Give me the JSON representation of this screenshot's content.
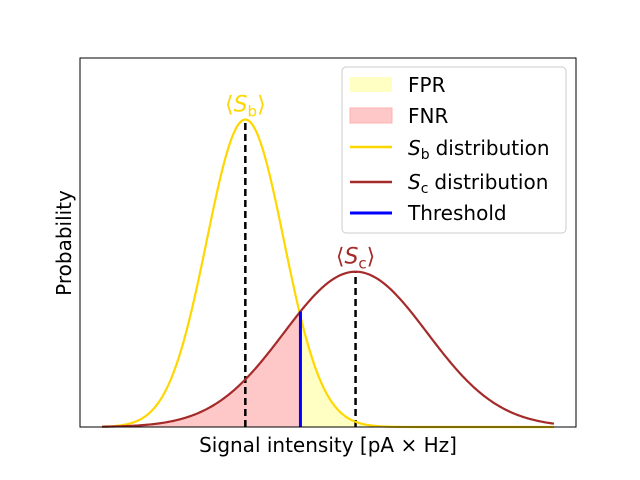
{
  "chart_data": {
    "type": "line",
    "xlabel": "Signal intensity [pA × Hz]",
    "ylabel": "Probability",
    "xlim": [
      -0.3,
      4.2
    ],
    "ylim": [
      0,
      1.2
    ],
    "x_ticks_visible": false,
    "y_ticks_visible": false,
    "grid": false,
    "legend_position": "top-right",
    "threshold": 1.7,
    "series": [
      {
        "name": "S_b distribution",
        "legend_label": "distribution",
        "symbol": "S",
        "subscript": "b",
        "mean": 1.2,
        "std": 0.35,
        "peak": 1.0,
        "color": "#FFD700"
      },
      {
        "name": "S_c distribution",
        "legend_label": "distribution",
        "symbol": "S",
        "subscript": "c",
        "mean": 2.2,
        "std": 0.65,
        "peak": 0.505,
        "color": "#A52A2A"
      }
    ],
    "regions": [
      {
        "name": "FPR",
        "label": "FPR",
        "color": "#FFFFC4"
      },
      {
        "name": "FNR",
        "label": "FNR",
        "color": "#FFC8C8"
      }
    ],
    "threshold_label": "Threshold",
    "threshold_color": "#0000FF",
    "mean_annotations": [
      {
        "symbol": "S",
        "subscript": "b",
        "open": "⟨",
        "close": "⟩"
      },
      {
        "symbol": "S",
        "subscript": "c",
        "open": "⟨",
        "close": "⟩"
      }
    ]
  }
}
